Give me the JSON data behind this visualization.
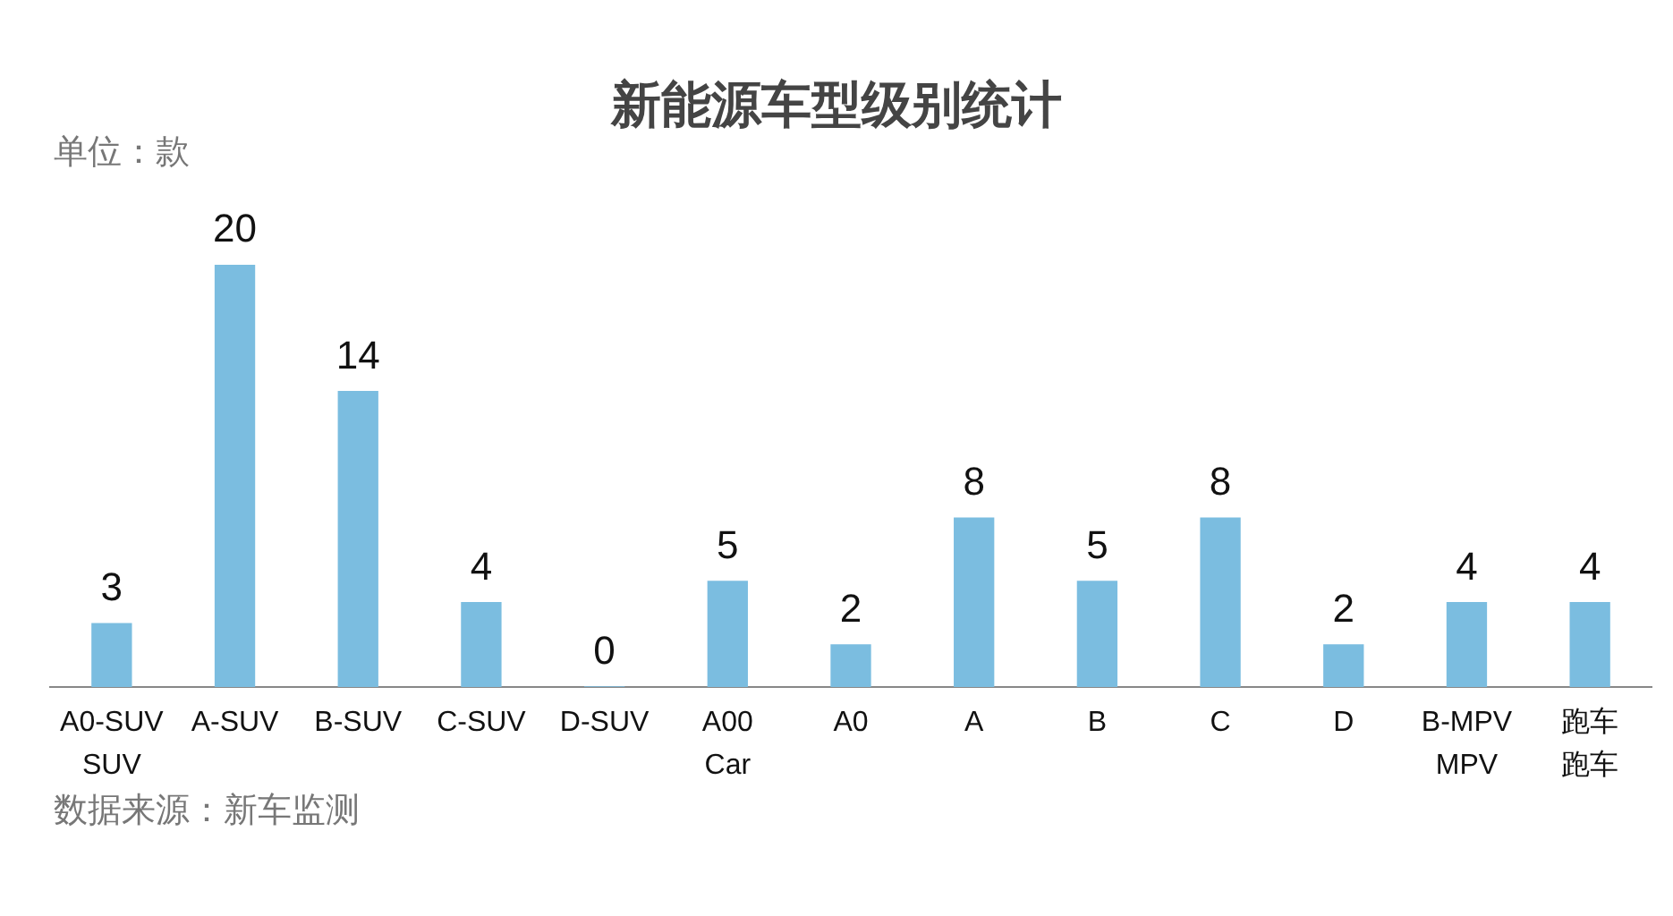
{
  "chart_data": {
    "type": "bar",
    "title": "新能源车型级别统计",
    "categories": [
      "A0-SUV\nSUV",
      "A-SUV",
      "B-SUV",
      "C-SUV",
      "D-SUV",
      "A00\nCar",
      "A0",
      "A",
      "B",
      "C",
      "D",
      "B-MPV\nMPV",
      "跑车跑车"
    ],
    "values": [
      3,
      20,
      14,
      4,
      0,
      5,
      2,
      8,
      5,
      8,
      2,
      4,
      4
    ],
    "color": "#7bbde0",
    "tick_labels": "x",
    "data_labels": true,
    "grid": false,
    "legend": false,
    "annotations": [
      "单位：款",
      "数据来源：新车监测"
    ]
  }
}
